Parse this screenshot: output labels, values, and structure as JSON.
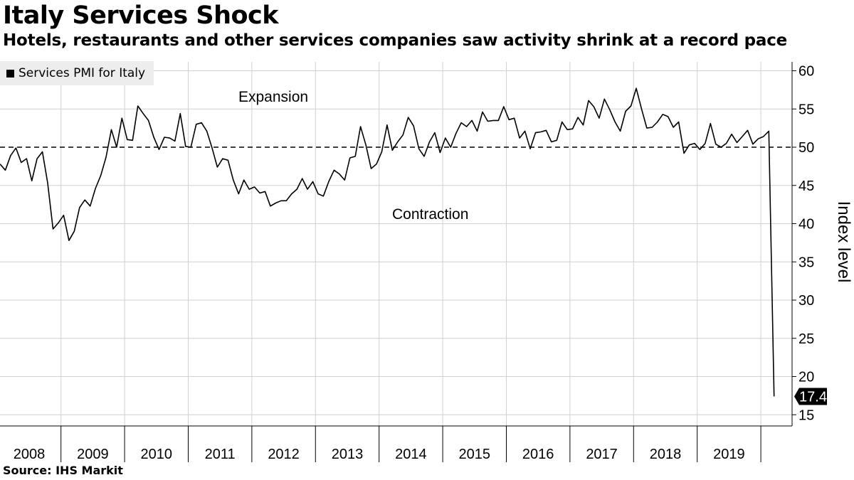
{
  "title": "Italy Services Shock",
  "subtitle": "Hotels, restaurants and other services companies saw activity shrink at a record pace",
  "source": "Source: IHS Markit",
  "legend": {
    "label": "Services PMI for Italy"
  },
  "colors": {
    "line": "#000000",
    "grid": "#d0d0d0",
    "legend_bg": "#ededed",
    "callout_bg": "#000000"
  },
  "chart_data": {
    "type": "line",
    "ylabel": "Index level",
    "ylim": [
      15,
      61
    ],
    "y_ticks": [
      15,
      20,
      25,
      30,
      35,
      40,
      45,
      50,
      55,
      60
    ],
    "x_start": "2008-01",
    "x_end": "2020-03",
    "year_labels": [
      "2008",
      "2009",
      "2010",
      "2011",
      "2012",
      "2013",
      "2014",
      "2015",
      "2016",
      "2017",
      "2018",
      "2019"
    ],
    "reference_line": 50,
    "annotations": [
      "Expansion",
      "Contraction"
    ],
    "last_value_label": "17.4",
    "grid": true,
    "legend_position": "top-left",
    "series": [
      {
        "name": "Services PMI for Italy",
        "values": [
          47.8,
          47.0,
          48.9,
          49.9,
          48.0,
          48.5,
          45.6,
          48.5,
          49.4,
          45.3,
          39.3,
          40.1,
          41.1,
          37.8,
          39.0,
          42.1,
          43.1,
          42.3,
          44.6,
          46.3,
          48.7,
          52.3,
          50.0,
          53.8,
          51.0,
          50.9,
          55.4,
          54.4,
          53.5,
          51.3,
          49.7,
          51.3,
          51.2,
          50.8,
          54.4,
          50.1,
          50.0,
          53.0,
          53.2,
          52.1,
          49.9,
          47.4,
          48.5,
          48.3,
          45.7,
          43.9,
          45.7,
          44.5,
          44.8,
          44.0,
          44.2,
          42.3,
          42.7,
          43.0,
          43.0,
          43.9,
          44.5,
          45.9,
          44.5,
          45.5,
          43.9,
          43.6,
          45.5,
          47.0,
          46.5,
          45.7,
          48.6,
          48.8,
          52.7,
          50.3,
          47.2,
          47.8,
          49.4,
          52.9,
          49.6,
          50.7,
          51.6,
          53.9,
          52.8,
          49.8,
          48.8,
          50.7,
          51.9,
          49.3,
          51.2,
          50.0,
          51.8,
          53.2,
          52.7,
          53.5,
          52.1,
          54.6,
          53.4,
          53.5,
          53.5,
          55.3,
          53.6,
          53.8,
          51.2,
          52.1,
          49.8,
          51.9,
          52.0,
          52.2,
          50.7,
          50.9,
          53.3,
          52.3,
          52.4,
          53.9,
          52.9,
          56.1,
          55.3,
          53.8,
          56.3,
          54.9,
          53.3,
          52.1,
          54.7,
          55.4,
          57.7,
          55.0,
          52.5,
          52.6,
          53.3,
          54.3,
          54.0,
          52.6,
          53.3,
          49.2,
          50.3,
          50.5,
          49.7,
          50.5,
          53.1,
          50.4,
          50.0,
          50.5,
          51.7,
          50.6,
          51.4,
          52.2,
          50.4,
          51.1,
          51.4,
          52.1,
          17.4
        ]
      }
    ]
  }
}
